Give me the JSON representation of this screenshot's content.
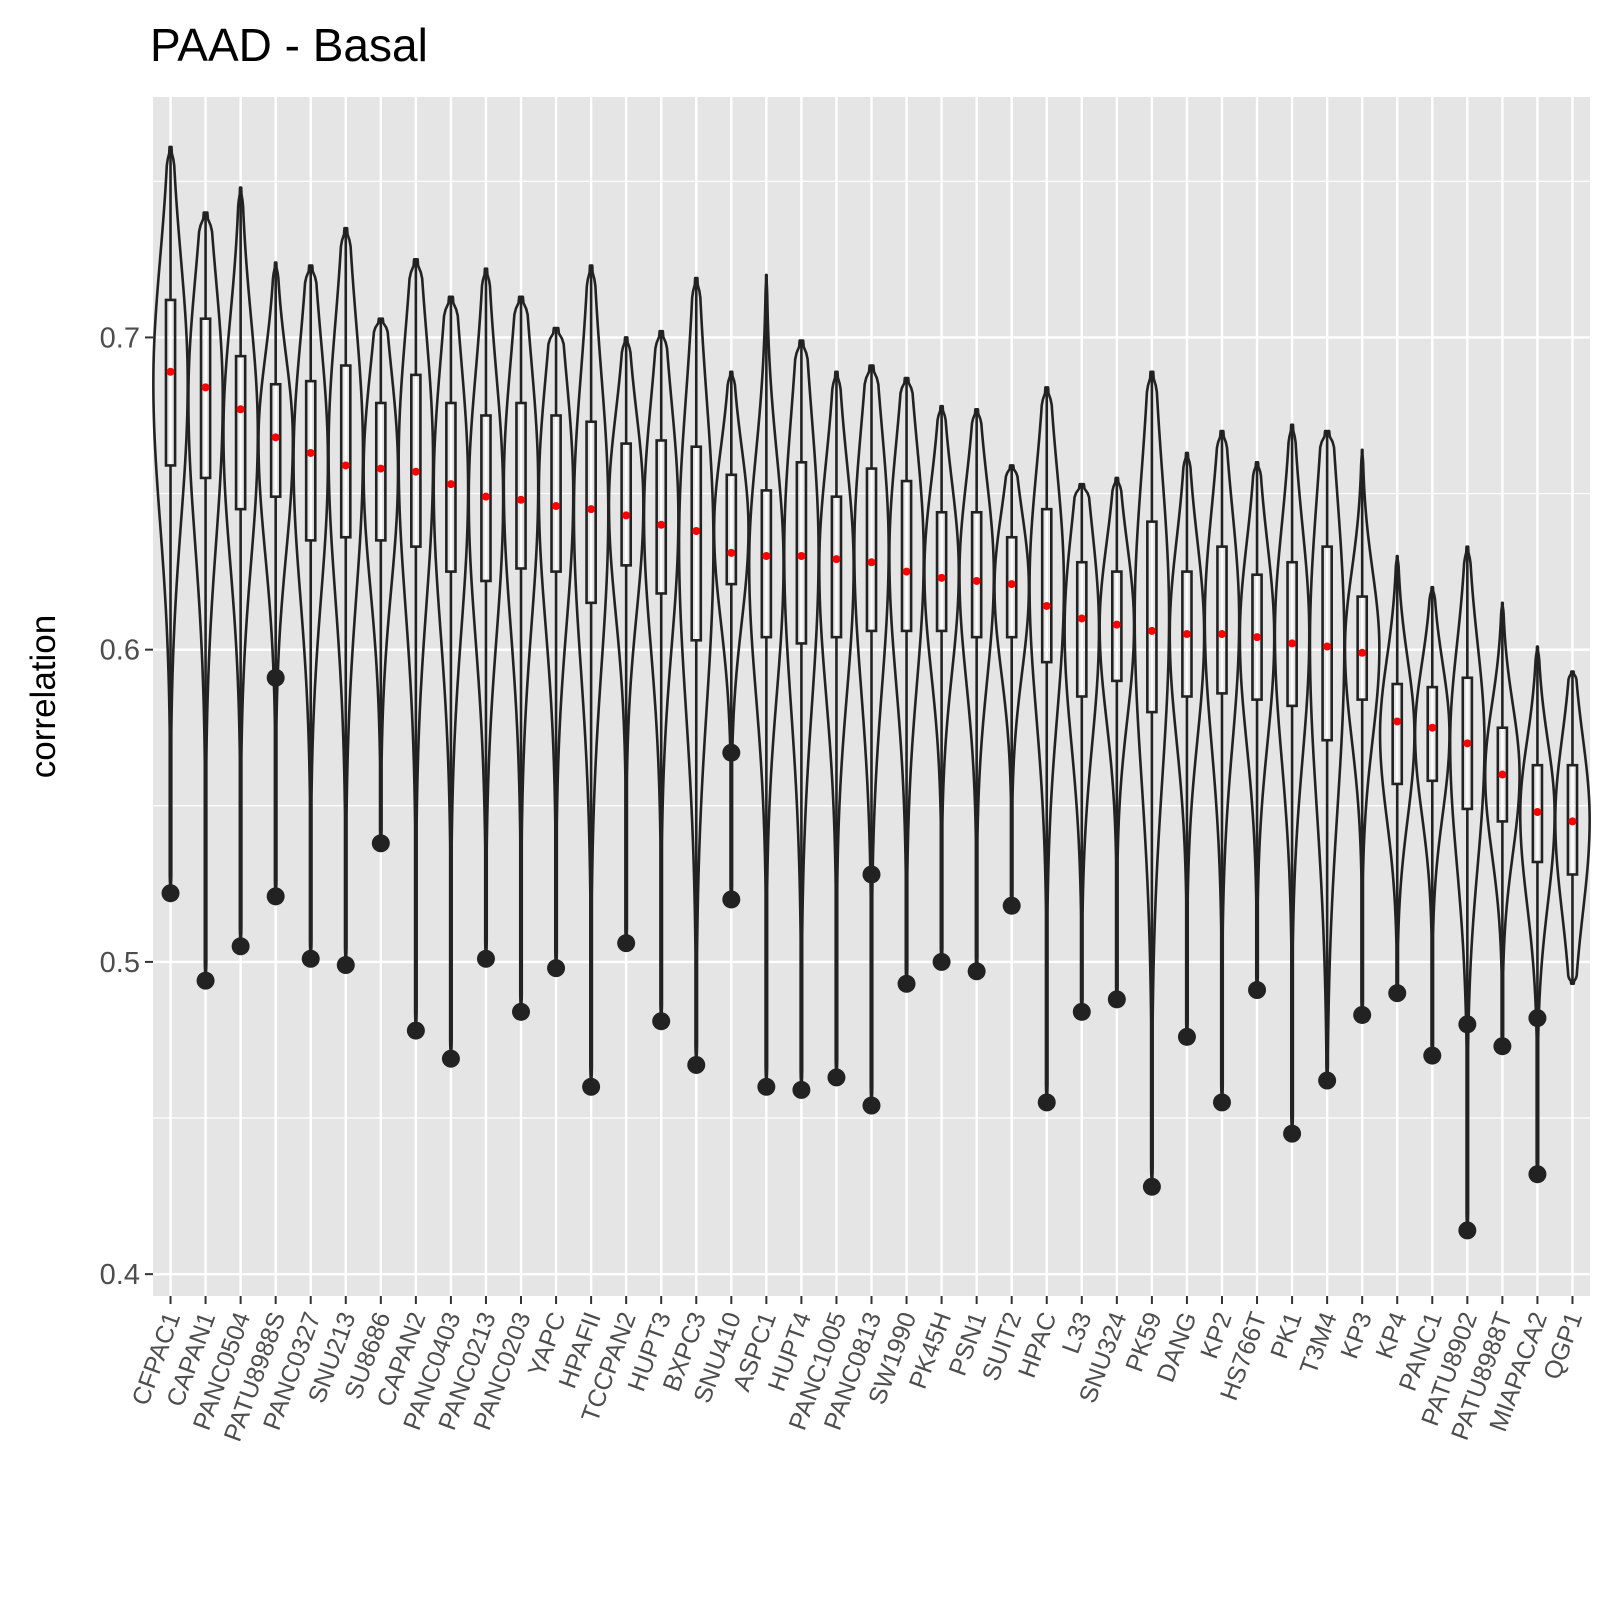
{
  "chart_data": {
    "type": "violin",
    "title": "PAAD - Basal",
    "xlabel": "",
    "ylabel": "correlation",
    "ylim": [
      0.393,
      0.777
    ],
    "yticks": [
      0.4,
      0.5,
      0.6,
      0.7
    ],
    "ytick_labels": [
      "0.4",
      "0.5",
      "0.6",
      "0.7"
    ],
    "grid": true,
    "legend": "none",
    "colors": {
      "panel": "#E5E5E5",
      "grid": "#FFFFFF",
      "outline": "#222222",
      "mean": "#FF0000",
      "outlier": "#222222"
    },
    "categories": [
      "CFPAC1",
      "CAPAN1",
      "PANC0504",
      "PATU8988S",
      "PANC0327",
      "SNU213",
      "SU8686",
      "CAPAN2",
      "PANC0403",
      "PANC0213",
      "PANC0203",
      "YAPC",
      "HPAFII",
      "TCCPAN2",
      "HUPT3",
      "BXPC3",
      "SNU410",
      "ASPC1",
      "HUPT4",
      "PANC1005",
      "PANC0813",
      "SW1990",
      "PK45H",
      "PSN1",
      "SUIT2",
      "HPAC",
      "L33",
      "SNU324",
      "PK59",
      "DANG",
      "KP2",
      "HS766T",
      "PK1",
      "T3M4",
      "KP3",
      "KP4",
      "PANC1",
      "PATU8902",
      "PATU8988T",
      "MIAPACA2",
      "QGP1"
    ],
    "violins": [
      {
        "max": 0.761,
        "q3": 0.712,
        "mean": 0.689,
        "q1": 0.659,
        "whisker_low": 0.522,
        "outliers": [
          0.522
        ]
      },
      {
        "max": 0.74,
        "q3": 0.706,
        "mean": 0.684,
        "q1": 0.655,
        "whisker_low": 0.494,
        "outliers": [
          0.494
        ]
      },
      {
        "max": 0.748,
        "q3": 0.694,
        "mean": 0.677,
        "q1": 0.645,
        "whisker_low": 0.505,
        "outliers": [
          0.505
        ]
      },
      {
        "max": 0.724,
        "q3": 0.685,
        "mean": 0.668,
        "q1": 0.649,
        "whisker_low": 0.521,
        "outliers": [
          0.591,
          0.521
        ]
      },
      {
        "max": 0.723,
        "q3": 0.686,
        "mean": 0.663,
        "q1": 0.635,
        "whisker_low": 0.501,
        "outliers": [
          0.501
        ]
      },
      {
        "max": 0.735,
        "q3": 0.691,
        "mean": 0.659,
        "q1": 0.636,
        "whisker_low": 0.499,
        "outliers": [
          0.499
        ]
      },
      {
        "max": 0.706,
        "q3": 0.679,
        "mean": 0.658,
        "q1": 0.635,
        "whisker_low": 0.538,
        "outliers": [
          0.538
        ]
      },
      {
        "max": 0.725,
        "q3": 0.688,
        "mean": 0.657,
        "q1": 0.633,
        "whisker_low": 0.478,
        "outliers": [
          0.478
        ]
      },
      {
        "max": 0.713,
        "q3": 0.679,
        "mean": 0.653,
        "q1": 0.625,
        "whisker_low": 0.469,
        "outliers": [
          0.469
        ]
      },
      {
        "max": 0.722,
        "q3": 0.675,
        "mean": 0.649,
        "q1": 0.622,
        "whisker_low": 0.501,
        "outliers": [
          0.501
        ]
      },
      {
        "max": 0.713,
        "q3": 0.679,
        "mean": 0.648,
        "q1": 0.626,
        "whisker_low": 0.484,
        "outliers": [
          0.484
        ]
      },
      {
        "max": 0.703,
        "q3": 0.675,
        "mean": 0.646,
        "q1": 0.625,
        "whisker_low": 0.498,
        "outliers": [
          0.498
        ]
      },
      {
        "max": 0.723,
        "q3": 0.673,
        "mean": 0.645,
        "q1": 0.615,
        "whisker_low": 0.46,
        "outliers": [
          0.46
        ]
      },
      {
        "max": 0.7,
        "q3": 0.666,
        "mean": 0.643,
        "q1": 0.627,
        "whisker_low": 0.506,
        "outliers": [
          0.506
        ]
      },
      {
        "max": 0.702,
        "q3": 0.667,
        "mean": 0.64,
        "q1": 0.618,
        "whisker_low": 0.481,
        "outliers": [
          0.481
        ]
      },
      {
        "max": 0.719,
        "q3": 0.665,
        "mean": 0.638,
        "q1": 0.603,
        "whisker_low": 0.467,
        "outliers": [
          0.467
        ]
      },
      {
        "max": 0.689,
        "q3": 0.656,
        "mean": 0.631,
        "q1": 0.621,
        "whisker_low": 0.52,
        "outliers": [
          0.567,
          0.52
        ]
      },
      {
        "max": 0.72,
        "q3": 0.651,
        "mean": 0.63,
        "q1": 0.604,
        "whisker_low": 0.46,
        "outliers": [
          0.46
        ]
      },
      {
        "max": 0.699,
        "q3": 0.66,
        "mean": 0.63,
        "q1": 0.602,
        "whisker_low": 0.459,
        "outliers": [
          0.459
        ]
      },
      {
        "max": 0.689,
        "q3": 0.649,
        "mean": 0.629,
        "q1": 0.604,
        "whisker_low": 0.463,
        "outliers": [
          0.463
        ]
      },
      {
        "max": 0.691,
        "q3": 0.658,
        "mean": 0.628,
        "q1": 0.606,
        "whisker_low": 0.454,
        "outliers": [
          0.528,
          0.454
        ]
      },
      {
        "max": 0.687,
        "q3": 0.654,
        "mean": 0.625,
        "q1": 0.606,
        "whisker_low": 0.493,
        "outliers": [
          0.493
        ]
      },
      {
        "max": 0.678,
        "q3": 0.644,
        "mean": 0.623,
        "q1": 0.606,
        "whisker_low": 0.5,
        "outliers": [
          0.5
        ]
      },
      {
        "max": 0.677,
        "q3": 0.644,
        "mean": 0.622,
        "q1": 0.604,
        "whisker_low": 0.497,
        "outliers": [
          0.497
        ]
      },
      {
        "max": 0.659,
        "q3": 0.636,
        "mean": 0.621,
        "q1": 0.604,
        "whisker_low": 0.518,
        "outliers": [
          0.518
        ]
      },
      {
        "max": 0.684,
        "q3": 0.645,
        "mean": 0.614,
        "q1": 0.596,
        "whisker_low": 0.455,
        "outliers": [
          0.455
        ]
      },
      {
        "max": 0.653,
        "q3": 0.628,
        "mean": 0.61,
        "q1": 0.585,
        "whisker_low": 0.484,
        "outliers": [
          0.484
        ]
      },
      {
        "max": 0.655,
        "q3": 0.625,
        "mean": 0.608,
        "q1": 0.59,
        "whisker_low": 0.488,
        "outliers": [
          0.488
        ]
      },
      {
        "max": 0.689,
        "q3": 0.641,
        "mean": 0.606,
        "q1": 0.58,
        "whisker_low": 0.428,
        "outliers": [
          0.428
        ]
      },
      {
        "max": 0.663,
        "q3": 0.625,
        "mean": 0.605,
        "q1": 0.585,
        "whisker_low": 0.476,
        "outliers": [
          0.476
        ]
      },
      {
        "max": 0.67,
        "q3": 0.633,
        "mean": 0.605,
        "q1": 0.586,
        "whisker_low": 0.455,
        "outliers": [
          0.455
        ]
      },
      {
        "max": 0.66,
        "q3": 0.624,
        "mean": 0.604,
        "q1": 0.584,
        "whisker_low": 0.491,
        "outliers": [
          0.491
        ]
      },
      {
        "max": 0.672,
        "q3": 0.628,
        "mean": 0.602,
        "q1": 0.582,
        "whisker_low": 0.445,
        "outliers": [
          0.445
        ]
      },
      {
        "max": 0.67,
        "q3": 0.633,
        "mean": 0.601,
        "q1": 0.571,
        "whisker_low": 0.462,
        "outliers": [
          0.462
        ]
      },
      {
        "max": 0.664,
        "q3": 0.617,
        "mean": 0.599,
        "q1": 0.584,
        "whisker_low": 0.483,
        "outliers": [
          0.483
        ]
      },
      {
        "max": 0.63,
        "q3": 0.589,
        "mean": 0.577,
        "q1": 0.557,
        "whisker_low": 0.49,
        "outliers": [
          0.49
        ]
      },
      {
        "max": 0.62,
        "q3": 0.588,
        "mean": 0.575,
        "q1": 0.558,
        "whisker_low": 0.47,
        "outliers": [
          0.47
        ]
      },
      {
        "max": 0.633,
        "q3": 0.591,
        "mean": 0.57,
        "q1": 0.549,
        "whisker_low": 0.414,
        "outliers": [
          0.48,
          0.414
        ]
      },
      {
        "max": 0.615,
        "q3": 0.575,
        "mean": 0.56,
        "q1": 0.545,
        "whisker_low": 0.473,
        "outliers": [
          0.473
        ]
      },
      {
        "max": 0.601,
        "q3": 0.563,
        "mean": 0.548,
        "q1": 0.532,
        "whisker_low": 0.432,
        "outliers": [
          0.482,
          0.432
        ]
      },
      {
        "max": 0.593,
        "q3": 0.563,
        "mean": 0.545,
        "q1": 0.528,
        "whisker_low": 0.493,
        "outliers": []
      }
    ]
  }
}
